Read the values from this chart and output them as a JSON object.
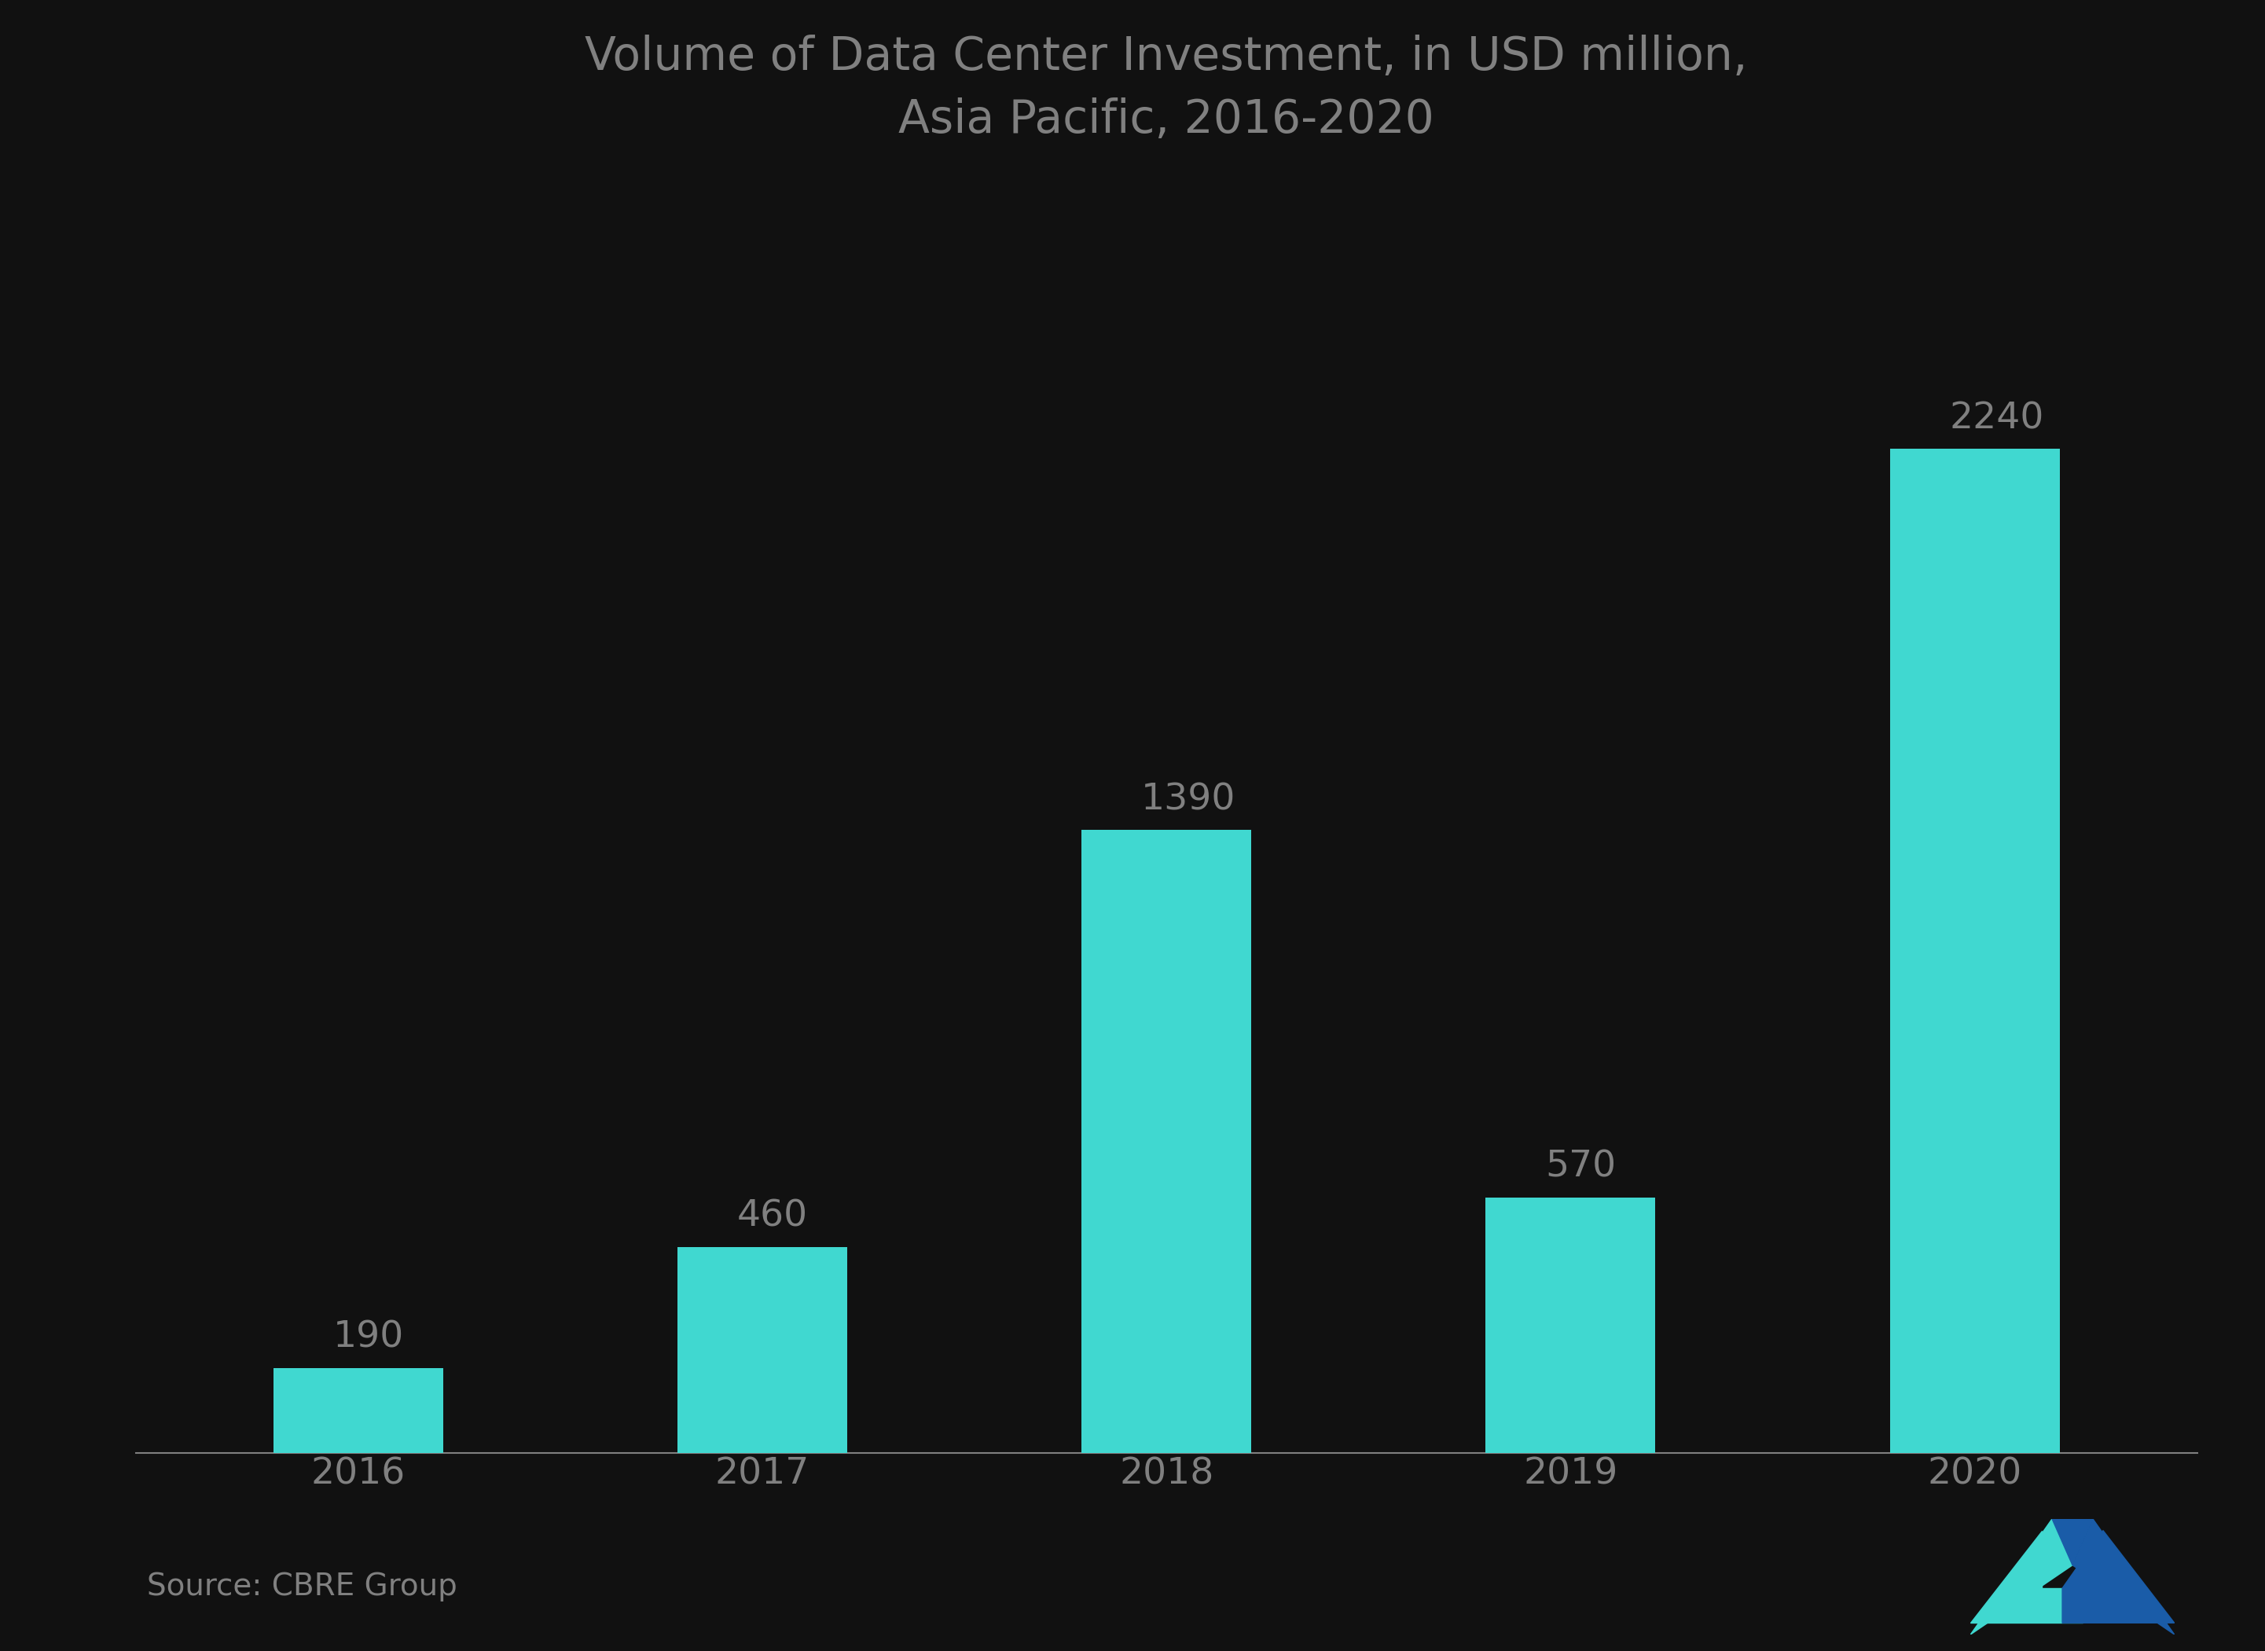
{
  "categories": [
    "2016",
    "2017",
    "2018",
    "2019",
    "2020"
  ],
  "values": [
    190,
    460,
    1390,
    570,
    2240
  ],
  "bar_color": "#40D8D0",
  "background_color": "#111111",
  "text_color": "#808080",
  "title_line1": "Volume of Data Center Investment, in USD million,",
  "title_line2": "Asia Pacific, 2016-2020",
  "source_text": "Source: CBRE Group",
  "title_fontsize": 42,
  "label_fontsize": 34,
  "tick_fontsize": 34,
  "source_fontsize": 28,
  "ylim_max": 2800,
  "bar_width": 0.42,
  "logo_teal": "#40D8D0",
  "logo_blue": "#1a5ca8"
}
